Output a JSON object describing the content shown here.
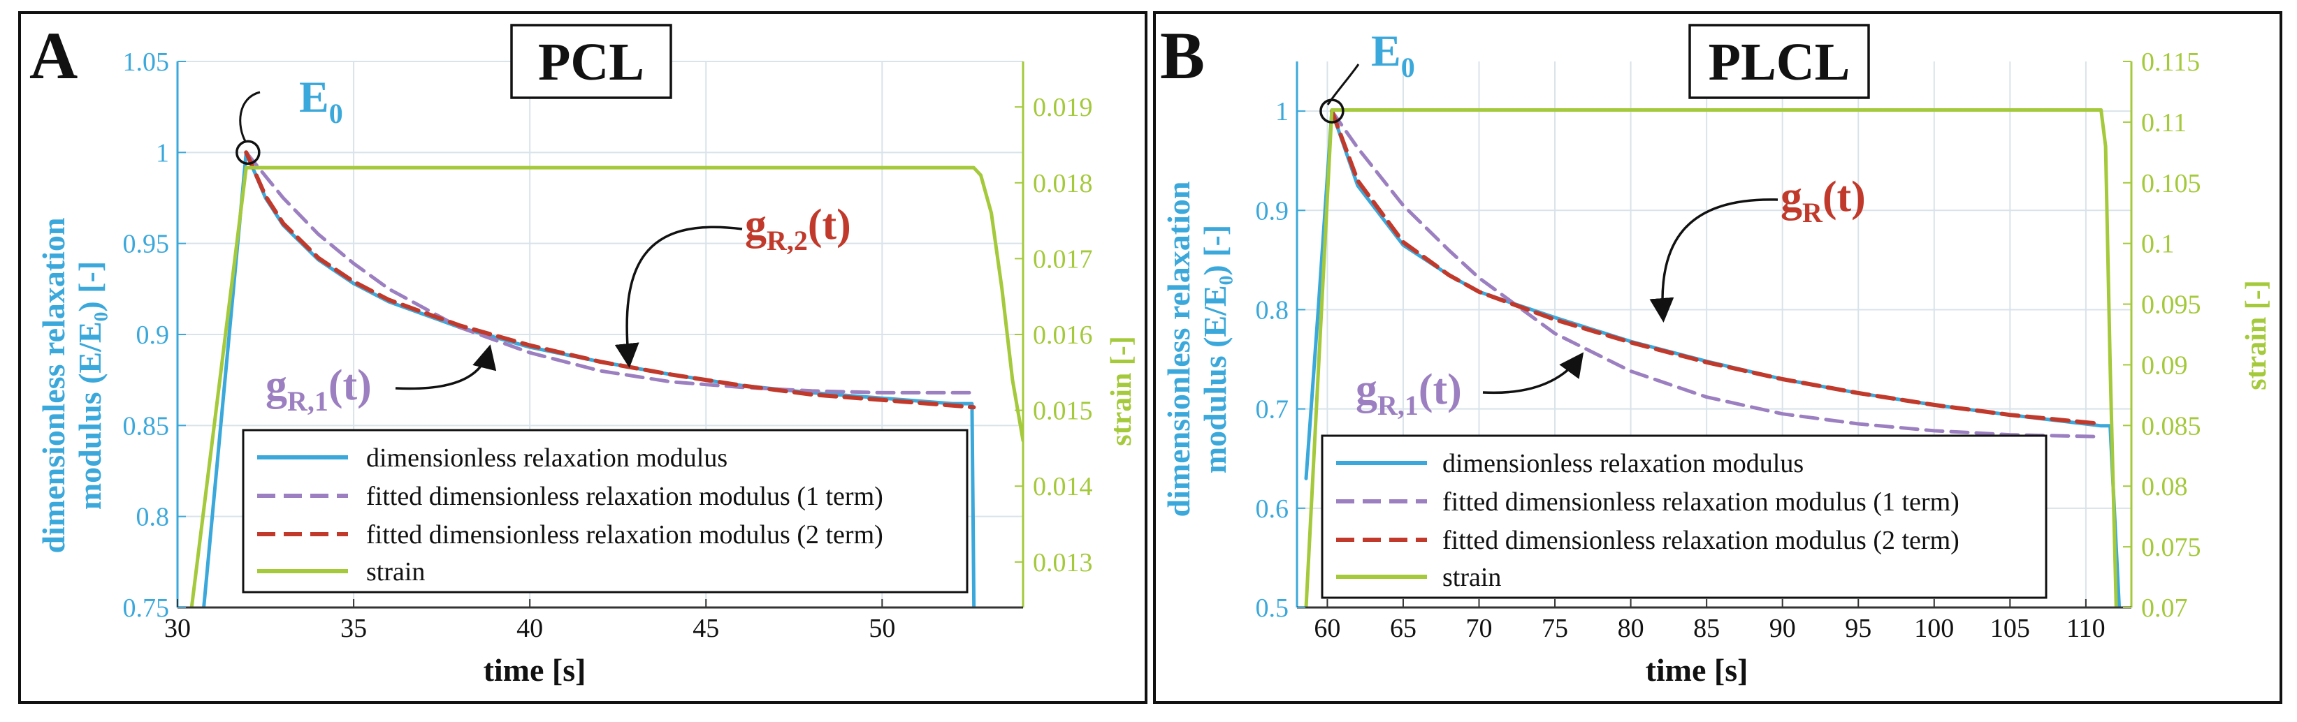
{
  "colors": {
    "modulus": "#3aa8db",
    "fit1": "#9b7fc0",
    "fit2": "#c0392b",
    "strain": "#a4c93b",
    "grid": "#d9e3ea",
    "frame": "#111111"
  },
  "chart_data": [
    {
      "type": "line",
      "panel_letter": "A",
      "material": "PCL",
      "xlabel": "time [s]",
      "ylabel_line1": "dimensionless relaxation",
      "ylabel_line2": "modulus (E/E₀) [-]",
      "ylabel_right": "strain [-]",
      "xlim": [
        30,
        54
      ],
      "ylim": [
        0.75,
        1.05
      ],
      "ylim_right": [
        0.0124,
        0.0196
      ],
      "xticks": [
        "30",
        "35",
        "40",
        "45",
        "50"
      ],
      "xtick_values": [
        30,
        35,
        40,
        45,
        50
      ],
      "yticks": [
        "0.75",
        "0.8",
        "0.85",
        "0.9",
        "0.95",
        "1",
        "1.05"
      ],
      "ytick_values": [
        0.75,
        0.8,
        0.85,
        0.9,
        0.95,
        1.0,
        1.05
      ],
      "yticks_right": [
        "0.013",
        "0.014",
        "0.015",
        "0.016",
        "0.017",
        "0.018",
        "0.019"
      ],
      "ytick_values_right": [
        0.013,
        0.014,
        0.015,
        0.016,
        0.017,
        0.018,
        0.019
      ],
      "legend": [
        "dimensionless relaxation modulus",
        "fitted dimensionless relaxation modulus (1 term)",
        "fitted dimensionless relaxation modulus (2 term)",
        "strain"
      ],
      "legend_position": "bottom-center",
      "annotations": {
        "peak": {
          "main": "E",
          "sub": "0",
          "x": 32.0,
          "y": 1.0
        },
        "fit_main": {
          "main": "g",
          "sub": "R,2",
          "suffix": "(t)",
          "x": 42.7,
          "y": 0.88
        },
        "fit_one_term": {
          "main": "g",
          "sub": "R,1",
          "suffix": "(t)",
          "x": 38.8,
          "y": 0.89
        }
      },
      "series": [
        {
          "name": "dimensionless relaxation modulus",
          "axis": "left",
          "x": [
            30.6,
            31.95,
            32.5,
            33.0,
            34.0,
            35.0,
            36.0,
            38.0,
            40.0,
            42.0,
            44.0,
            46.0,
            48.0,
            50.0,
            52.0,
            52.55,
            52.62
          ],
          "y": [
            0.72,
            1.0,
            0.975,
            0.96,
            0.941,
            0.928,
            0.918,
            0.904,
            0.893,
            0.885,
            0.878,
            0.872,
            0.868,
            0.865,
            0.862,
            0.862,
            0.72
          ]
        },
        {
          "name": "fitted dimensionless relaxation modulus (1 term)",
          "axis": "left",
          "x": [
            31.95,
            33.0,
            34.0,
            35.0,
            36.0,
            38.0,
            40.0,
            42.0,
            44.0,
            46.0,
            48.0,
            50.0,
            52.0,
            52.6
          ],
          "y": [
            1.0,
            0.975,
            0.955,
            0.939,
            0.925,
            0.904,
            0.89,
            0.88,
            0.874,
            0.871,
            0.869,
            0.868,
            0.868,
            0.868
          ]
        },
        {
          "name": "fitted dimensionless relaxation modulus (2 term)",
          "axis": "left",
          "x": [
            31.95,
            32.5,
            33.0,
            34.0,
            35.0,
            36.0,
            38.0,
            40.0,
            42.0,
            44.0,
            46.0,
            48.0,
            50.0,
            52.0,
            52.6
          ],
          "y": [
            1.0,
            0.976,
            0.961,
            0.942,
            0.929,
            0.919,
            0.905,
            0.894,
            0.885,
            0.878,
            0.872,
            0.867,
            0.864,
            0.861,
            0.86
          ]
        },
        {
          "name": "strain",
          "axis": "right",
          "x": [
            30.4,
            31.95,
            52.6,
            52.8,
            53.1,
            53.4,
            53.7,
            54.0
          ],
          "y": [
            0.0124,
            0.0182,
            0.0182,
            0.0181,
            0.0176,
            0.0166,
            0.0154,
            0.0146
          ]
        }
      ]
    },
    {
      "type": "line",
      "panel_letter": "B",
      "material": "PLCL",
      "xlabel": "time [s]",
      "ylabel_line1": "dimensionless relaxation",
      "ylabel_line2": "modulus (E/E₀) [-]",
      "ylabel_right": "strain [-]",
      "xlim": [
        58,
        113
      ],
      "ylim": [
        0.5,
        1.05
      ],
      "ylim_right": [
        0.07,
        0.115
      ],
      "xticks": [
        "60",
        "65",
        "70",
        "75",
        "80",
        "85",
        "90",
        "95",
        "100",
        "105",
        "110"
      ],
      "xtick_values": [
        60,
        65,
        70,
        75,
        80,
        85,
        90,
        95,
        100,
        105,
        110
      ],
      "yticks": [
        "0.5",
        "0.6",
        "0.7",
        "0.8",
        "0.9",
        "1"
      ],
      "ytick_values": [
        0.5,
        0.6,
        0.7,
        0.8,
        0.9,
        1.0
      ],
      "yticks_right": [
        "0.07",
        "0.075",
        "0.08",
        "0.085",
        "0.09",
        "0.095",
        "0.1",
        "0.105",
        "0.11",
        "0.115"
      ],
      "ytick_values_right": [
        0.07,
        0.075,
        0.08,
        0.085,
        0.09,
        0.095,
        0.1,
        0.105,
        0.11,
        0.115
      ],
      "legend": [
        "dimensionless relaxation modulus",
        "fitted dimensionless relaxation modulus (1 term)",
        "fitted dimensionless relaxation modulus (2 term)",
        "strain"
      ],
      "legend_position": "bottom-left",
      "annotations": {
        "peak": {
          "main": "E",
          "sub": "0",
          "x": 60.3,
          "y": 1.0
        },
        "fit_main": {
          "main": "g",
          "sub": "R",
          "suffix": "(t)",
          "x": 81.5,
          "y": 0.76
        },
        "fit_one_term": {
          "main": "g",
          "sub": "R,1",
          "suffix": "(t)",
          "x": 76.5,
          "y": 0.72
        }
      },
      "series": [
        {
          "name": "dimensionless relaxation modulus",
          "axis": "left",
          "x": [
            58.6,
            59.4,
            60.3,
            62.0,
            65.0,
            68.0,
            70.0,
            75.0,
            80.0,
            85.0,
            90.0,
            95.0,
            100.0,
            105.0,
            111.0,
            111.6,
            112.2
          ],
          "y": [
            0.63,
            0.8,
            1.0,
            0.925,
            0.865,
            0.835,
            0.818,
            0.792,
            0.768,
            0.748,
            0.73,
            0.716,
            0.704,
            0.694,
            0.683,
            0.683,
            0.5
          ]
        },
        {
          "name": "fitted dimensionless relaxation modulus (1 term)",
          "axis": "left",
          "x": [
            60.3,
            62.0,
            65.0,
            68.0,
            70.0,
            75.0,
            80.0,
            85.0,
            90.0,
            95.0,
            100.0,
            105.0,
            111.0
          ],
          "y": [
            1.0,
            0.963,
            0.905,
            0.86,
            0.832,
            0.776,
            0.738,
            0.712,
            0.695,
            0.685,
            0.678,
            0.674,
            0.672
          ]
        },
        {
          "name": "fitted dimensionless relaxation modulus (2 term)",
          "axis": "left",
          "x": [
            60.3,
            62.0,
            65.0,
            68.0,
            70.0,
            75.0,
            80.0,
            85.0,
            90.0,
            95.0,
            100.0,
            105.0,
            111.0
          ],
          "y": [
            1.0,
            0.93,
            0.868,
            0.835,
            0.818,
            0.79,
            0.767,
            0.747,
            0.73,
            0.716,
            0.704,
            0.694,
            0.685
          ]
        },
        {
          "name": "strain",
          "axis": "right",
          "x": [
            58.6,
            60.3,
            111.0,
            111.3,
            111.6,
            112.0
          ],
          "y": [
            0.07,
            0.111,
            0.111,
            0.108,
            0.09,
            0.07
          ]
        }
      ]
    }
  ]
}
